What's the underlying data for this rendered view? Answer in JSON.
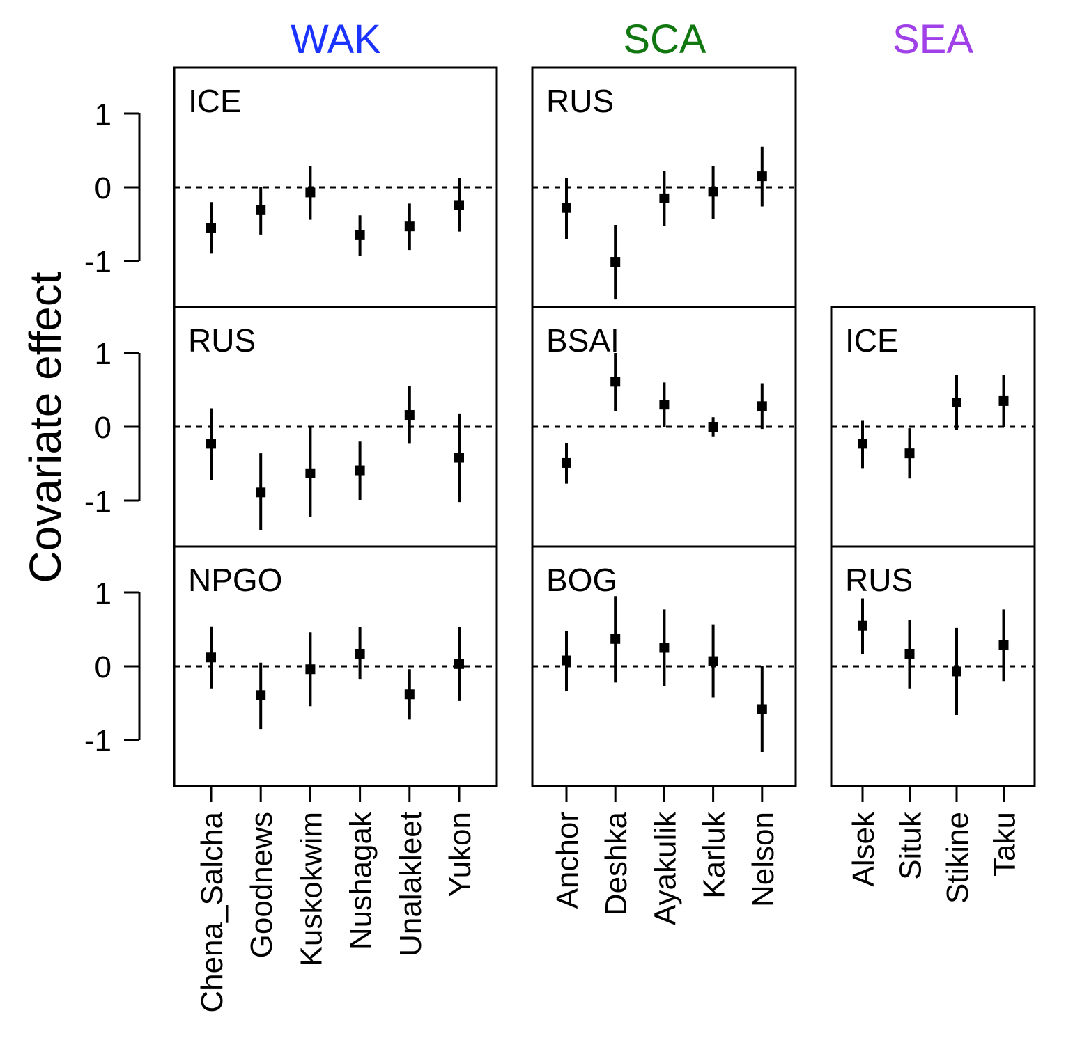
{
  "figure": {
    "ylabel": "Covariate effect",
    "ytick_labels": [
      "1",
      "0",
      "-1"
    ]
  },
  "groups": [
    {
      "name": "WAK",
      "color": "#1a33ff",
      "sites": [
        "Chena_Salcha",
        "Goodnews",
        "Kuskokwim",
        "Nushagak",
        "Unalakleet",
        "Yukon"
      ]
    },
    {
      "name": "SCA",
      "color": "#117711",
      "sites": [
        "Anchor",
        "Deshka",
        "Ayakulik",
        "Karluk",
        "Nelson"
      ]
    },
    {
      "name": "SEA",
      "color": "#a040e8",
      "sites": [
        "Alsek",
        "Situk",
        "Stikine",
        "Taku"
      ]
    }
  ],
  "chart_data": {
    "type": "scatter",
    "ylabel": "Covariate effect",
    "ylim": [
      -1.6,
      1.6
    ],
    "yticks": [
      -1,
      0,
      1
    ],
    "reference_line": 0,
    "panels": [
      {
        "group": "WAK",
        "row": 0,
        "label": "ICE",
        "points": [
          {
            "site": "Chena_Salcha",
            "mean": -0.55,
            "lower": -0.9,
            "upper": -0.2
          },
          {
            "site": "Goodnews",
            "mean": -0.31,
            "lower": -0.64,
            "upper": 0.0
          },
          {
            "site": "Kuskokwim",
            "mean": -0.07,
            "lower": -0.44,
            "upper": 0.29
          },
          {
            "site": "Nushagak",
            "mean": -0.65,
            "lower": -0.93,
            "upper": -0.38
          },
          {
            "site": "Unalakleet",
            "mean": -0.53,
            "lower": -0.85,
            "upper": -0.22
          },
          {
            "site": "Yukon",
            "mean": -0.24,
            "lower": -0.6,
            "upper": 0.13
          }
        ]
      },
      {
        "group": "WAK",
        "row": 1,
        "label": "RUS",
        "points": [
          {
            "site": "Chena_Salcha",
            "mean": -0.23,
            "lower": -0.72,
            "upper": 0.25
          },
          {
            "site": "Goodnews",
            "mean": -0.89,
            "lower": -1.4,
            "upper": -0.36
          },
          {
            "site": "Kuskokwim",
            "mean": -0.63,
            "lower": -1.22,
            "upper": 0.0
          },
          {
            "site": "Nushagak",
            "mean": -0.59,
            "lower": -0.99,
            "upper": -0.2
          },
          {
            "site": "Unalakleet",
            "mean": 0.16,
            "lower": -0.23,
            "upper": 0.55
          },
          {
            "site": "Yukon",
            "mean": -0.42,
            "lower": -1.02,
            "upper": 0.18
          }
        ]
      },
      {
        "group": "WAK",
        "row": 2,
        "label": "NPGO",
        "points": [
          {
            "site": "Chena_Salcha",
            "mean": 0.12,
            "lower": -0.3,
            "upper": 0.54
          },
          {
            "site": "Goodnews",
            "mean": -0.39,
            "lower": -0.85,
            "upper": 0.05
          },
          {
            "site": "Kuskokwim",
            "mean": -0.04,
            "lower": -0.54,
            "upper": 0.46
          },
          {
            "site": "Nushagak",
            "mean": 0.17,
            "lower": -0.18,
            "upper": 0.53
          },
          {
            "site": "Unalakleet",
            "mean": -0.38,
            "lower": -0.72,
            "upper": -0.04
          },
          {
            "site": "Yukon",
            "mean": 0.03,
            "lower": -0.47,
            "upper": 0.53
          }
        ]
      },
      {
        "group": "SCA",
        "row": 0,
        "label": "RUS",
        "points": [
          {
            "site": "Anchor",
            "mean": -0.28,
            "lower": -0.7,
            "upper": 0.13
          },
          {
            "site": "Deshka",
            "mean": -1.01,
            "lower": -1.52,
            "upper": -0.51
          },
          {
            "site": "Ayakulik",
            "mean": -0.15,
            "lower": -0.52,
            "upper": 0.22
          },
          {
            "site": "Karluk",
            "mean": -0.06,
            "lower": -0.43,
            "upper": 0.29
          },
          {
            "site": "Nelson",
            "mean": 0.15,
            "lower": -0.26,
            "upper": 0.55
          }
        ]
      },
      {
        "group": "SCA",
        "row": 1,
        "label": "BSAI",
        "points": [
          {
            "site": "Anchor",
            "mean": -0.49,
            "lower": -0.77,
            "upper": -0.22
          },
          {
            "site": "Deshka",
            "mean": 0.61,
            "lower": 0.21,
            "upper": 1.0
          },
          {
            "site": "Ayakulik",
            "mean": 0.3,
            "lower": 0.0,
            "upper": 0.6
          },
          {
            "site": "Karluk",
            "mean": 0.0,
            "lower": -0.13,
            "upper": 0.13
          },
          {
            "site": "Nelson",
            "mean": 0.28,
            "lower": -0.03,
            "upper": 0.59
          }
        ]
      },
      {
        "group": "SCA",
        "row": 2,
        "label": "BOG",
        "points": [
          {
            "site": "Anchor",
            "mean": 0.08,
            "lower": -0.33,
            "upper": 0.48
          },
          {
            "site": "Deshka",
            "mean": 0.37,
            "lower": -0.22,
            "upper": 0.95
          },
          {
            "site": "Ayakulik",
            "mean": 0.25,
            "lower": -0.27,
            "upper": 0.77
          },
          {
            "site": "Karluk",
            "mean": 0.07,
            "lower": -0.42,
            "upper": 0.56
          },
          {
            "site": "Nelson",
            "mean": -0.58,
            "lower": -1.16,
            "upper": 0.0
          }
        ]
      },
      {
        "group": "SEA",
        "row": 1,
        "label": "ICE",
        "points": [
          {
            "site": "Alsek",
            "mean": -0.23,
            "lower": -0.56,
            "upper": 0.09
          },
          {
            "site": "Situk",
            "mean": -0.36,
            "lower": -0.7,
            "upper": -0.02
          },
          {
            "site": "Stikine",
            "mean": 0.33,
            "lower": -0.04,
            "upper": 0.7
          },
          {
            "site": "Taku",
            "mean": 0.35,
            "lower": 0.0,
            "upper": 0.7
          }
        ]
      },
      {
        "group": "SEA",
        "row": 2,
        "label": "RUS",
        "points": [
          {
            "site": "Alsek",
            "mean": 0.55,
            "lower": 0.17,
            "upper": 0.92
          },
          {
            "site": "Situk",
            "mean": 0.17,
            "lower": -0.3,
            "upper": 0.63
          },
          {
            "site": "Stikine",
            "mean": -0.07,
            "lower": -0.66,
            "upper": 0.52
          },
          {
            "site": "Taku",
            "mean": 0.29,
            "lower": -0.2,
            "upper": 0.77
          }
        ]
      }
    ]
  }
}
